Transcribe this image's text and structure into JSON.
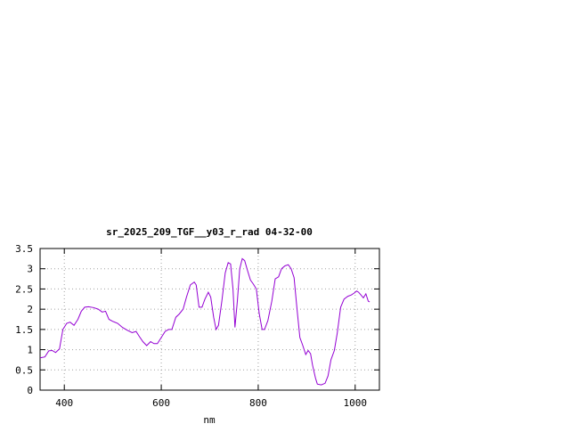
{
  "chart_data": {
    "type": "line",
    "title": "sr_2025_209_TGF__y03_r_rad 04-32-00",
    "xlabel": "nm",
    "ylabel": "",
    "xlim": [
      350,
      1050
    ],
    "ylim": [
      0,
      3.5
    ],
    "grid": true,
    "x_ticks": [
      400,
      600,
      800,
      1000
    ],
    "x_tick_labels": [
      "400",
      "600",
      "800",
      "1000"
    ],
    "y_ticks": [
      0,
      0.5,
      1,
      1.5,
      2,
      2.5,
      3,
      3.5
    ],
    "y_tick_labels": [
      "0",
      "0.5",
      "1",
      "1.5",
      "2",
      "2.5",
      "3",
      "3.5"
    ],
    "line_color": "#9400d3",
    "series": [
      {
        "points": [
          [
            350,
            0.8
          ],
          [
            360,
            0.82
          ],
          [
            368,
            0.97
          ],
          [
            375,
            0.98
          ],
          [
            382,
            0.93
          ],
          [
            390,
            1.02
          ],
          [
            397,
            1.5
          ],
          [
            405,
            1.65
          ],
          [
            412,
            1.68
          ],
          [
            420,
            1.6
          ],
          [
            428,
            1.75
          ],
          [
            435,
            1.95
          ],
          [
            442,
            2.05
          ],
          [
            450,
            2.06
          ],
          [
            460,
            2.04
          ],
          [
            470,
            2.0
          ],
          [
            478,
            1.93
          ],
          [
            485,
            1.95
          ],
          [
            492,
            1.75
          ],
          [
            500,
            1.7
          ],
          [
            510,
            1.65
          ],
          [
            520,
            1.55
          ],
          [
            530,
            1.48
          ],
          [
            540,
            1.42
          ],
          [
            548,
            1.45
          ],
          [
            555,
            1.32
          ],
          [
            562,
            1.2
          ],
          [
            570,
            1.1
          ],
          [
            578,
            1.2
          ],
          [
            585,
            1.15
          ],
          [
            592,
            1.15
          ],
          [
            600,
            1.3
          ],
          [
            608,
            1.45
          ],
          [
            615,
            1.5
          ],
          [
            622,
            1.5
          ],
          [
            630,
            1.8
          ],
          [
            637,
            1.88
          ],
          [
            645,
            2.0
          ],
          [
            652,
            2.3
          ],
          [
            660,
            2.6
          ],
          [
            668,
            2.67
          ],
          [
            672,
            2.6
          ],
          [
            678,
            2.05
          ],
          [
            684,
            2.05
          ],
          [
            690,
            2.25
          ],
          [
            697,
            2.42
          ],
          [
            702,
            2.3
          ],
          [
            708,
            1.8
          ],
          [
            713,
            1.5
          ],
          [
            718,
            1.6
          ],
          [
            725,
            2.2
          ],
          [
            732,
            2.9
          ],
          [
            738,
            3.15
          ],
          [
            743,
            3.12
          ],
          [
            748,
            2.5
          ],
          [
            752,
            1.55
          ],
          [
            757,
            2.2
          ],
          [
            762,
            3.0
          ],
          [
            767,
            3.25
          ],
          [
            772,
            3.2
          ],
          [
            778,
            2.95
          ],
          [
            784,
            2.72
          ],
          [
            790,
            2.62
          ],
          [
            796,
            2.5
          ],
          [
            802,
            1.9
          ],
          [
            808,
            1.5
          ],
          [
            813,
            1.5
          ],
          [
            820,
            1.72
          ],
          [
            828,
            2.2
          ],
          [
            835,
            2.75
          ],
          [
            842,
            2.8
          ],
          [
            848,
            3.0
          ],
          [
            855,
            3.07
          ],
          [
            862,
            3.1
          ],
          [
            868,
            3.0
          ],
          [
            874,
            2.78
          ],
          [
            880,
            2.0
          ],
          [
            886,
            1.3
          ],
          [
            892,
            1.1
          ],
          [
            898,
            0.88
          ],
          [
            903,
            0.98
          ],
          [
            908,
            0.9
          ],
          [
            912,
            0.62
          ],
          [
            918,
            0.3
          ],
          [
            922,
            0.15
          ],
          [
            930,
            0.13
          ],
          [
            938,
            0.17
          ],
          [
            944,
            0.35
          ],
          [
            950,
            0.75
          ],
          [
            957,
            0.98
          ],
          [
            963,
            1.4
          ],
          [
            970,
            2.05
          ],
          [
            977,
            2.25
          ],
          [
            985,
            2.32
          ],
          [
            992,
            2.35
          ],
          [
            998,
            2.4
          ],
          [
            1003,
            2.45
          ],
          [
            1007,
            2.42
          ],
          [
            1012,
            2.35
          ],
          [
            1017,
            2.28
          ],
          [
            1022,
            2.38
          ],
          [
            1027,
            2.2
          ],
          [
            1030,
            2.18
          ]
        ]
      }
    ]
  }
}
